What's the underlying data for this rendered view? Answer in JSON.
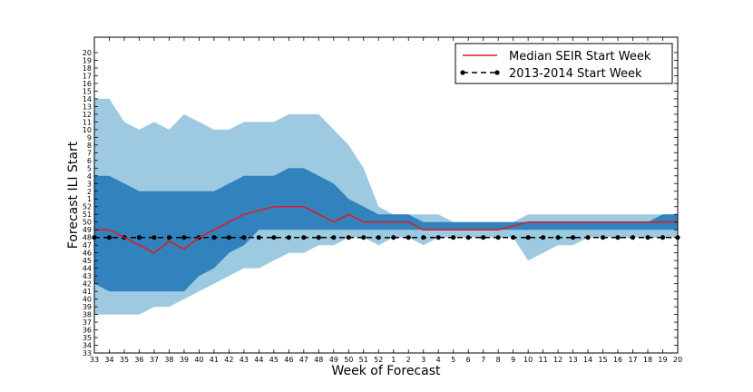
{
  "chart_data": {
    "type": "area",
    "title": "",
    "xlabel": "Week of Forecast",
    "ylabel": "Forecast ILI Start",
    "x_tick_labels": [
      "33",
      "34",
      "35",
      "36",
      "37",
      "38",
      "39",
      "40",
      "41",
      "42",
      "43",
      "44",
      "45",
      "46",
      "47",
      "48",
      "49",
      "50",
      "51",
      "52",
      "1",
      "2",
      "3",
      "4",
      "5",
      "6",
      "7",
      "8",
      "9",
      "10",
      "11",
      "12",
      "13",
      "14",
      "15",
      "16",
      "17",
      "18",
      "19",
      "20"
    ],
    "y_tick_labels": [
      "33",
      "34",
      "35",
      "36",
      "37",
      "38",
      "39",
      "40",
      "41",
      "42",
      "43",
      "44",
      "45",
      "46",
      "47",
      "48",
      "49",
      "50",
      "51",
      "52",
      "1",
      "2",
      "3",
      "4",
      "5",
      "6",
      "7",
      "8",
      "9",
      "10",
      "11",
      "12",
      "13",
      "14",
      "15",
      "16",
      "17",
      "18",
      "19",
      "20"
    ],
    "y_note": "y values are ordinal positions: 0 = week 33 ... 19 = week 52, 20 = week 1 ... 39 = week 20",
    "ylim": [
      0,
      41
    ],
    "xlim": [
      0,
      39
    ],
    "colors": {
      "outer_band": "#9ecae1",
      "inner_band": "#3182bd",
      "median_line": "#e31a1c",
      "start_line": "#000000",
      "frame": "#000000"
    },
    "series": [
      {
        "name": "Outer interval",
        "upper": [
          33,
          33,
          30,
          29,
          30,
          29,
          31,
          30,
          29,
          29,
          30,
          30,
          30,
          31,
          31,
          31,
          29,
          27,
          24,
          19,
          18,
          18,
          18,
          18,
          17,
          17,
          17,
          17,
          17,
          18,
          18,
          18,
          18,
          18,
          18,
          18,
          18,
          18,
          18,
          18
        ],
        "lower": [
          5,
          5,
          5,
          5,
          6,
          6,
          7,
          8,
          9,
          10,
          11,
          11,
          12,
          13,
          13,
          14,
          14,
          15,
          15,
          14,
          15,
          15,
          14,
          15,
          15,
          15,
          15,
          15,
          15,
          12,
          13,
          14,
          14,
          15,
          15,
          15,
          15,
          15,
          15,
          15
        ]
      },
      {
        "name": "Inner interval",
        "upper": [
          23,
          23,
          22,
          21,
          21,
          21,
          21,
          21,
          21,
          22,
          23,
          23,
          23,
          24,
          24,
          23,
          22,
          20,
          19,
          18,
          18,
          18,
          17,
          17,
          17,
          17,
          17,
          17,
          17,
          17,
          17,
          17,
          17,
          17,
          17,
          17,
          17,
          17,
          18,
          18
        ],
        "lower": [
          9,
          8,
          8,
          8,
          8,
          8,
          8,
          10,
          11,
          13,
          14,
          16,
          16,
          16,
          16,
          16,
          16,
          16,
          16,
          16,
          16,
          16,
          16,
          16,
          16,
          16,
          16,
          16,
          16,
          16,
          16,
          16,
          16,
          16,
          16,
          16,
          16,
          16,
          16,
          16
        ]
      },
      {
        "name": "Median SEIR Start Week",
        "values": [
          16,
          16,
          15,
          14,
          13,
          14.5,
          13.5,
          15,
          16,
          17,
          18,
          18.5,
          19,
          19,
          19,
          18,
          17,
          18,
          17,
          17,
          17,
          17,
          16,
          16,
          16,
          16,
          16,
          16,
          16.5,
          17,
          17,
          17,
          17,
          17,
          17,
          17,
          17,
          17,
          17,
          17
        ]
      },
      {
        "name": "2013-2014 Start Week",
        "values": [
          15,
          15,
          15,
          15,
          15,
          15,
          15,
          15,
          15,
          15,
          15,
          15,
          15,
          15,
          15,
          15,
          15,
          15,
          15,
          15,
          15,
          15,
          15,
          15,
          15,
          15,
          15,
          15,
          15,
          15,
          15,
          15,
          15,
          15,
          15,
          15,
          15,
          15,
          15,
          15
        ]
      }
    ],
    "legend": {
      "placement": "top-right",
      "entries": [
        "Median SEIR Start Week",
        "2013-2014 Start Week"
      ]
    }
  }
}
